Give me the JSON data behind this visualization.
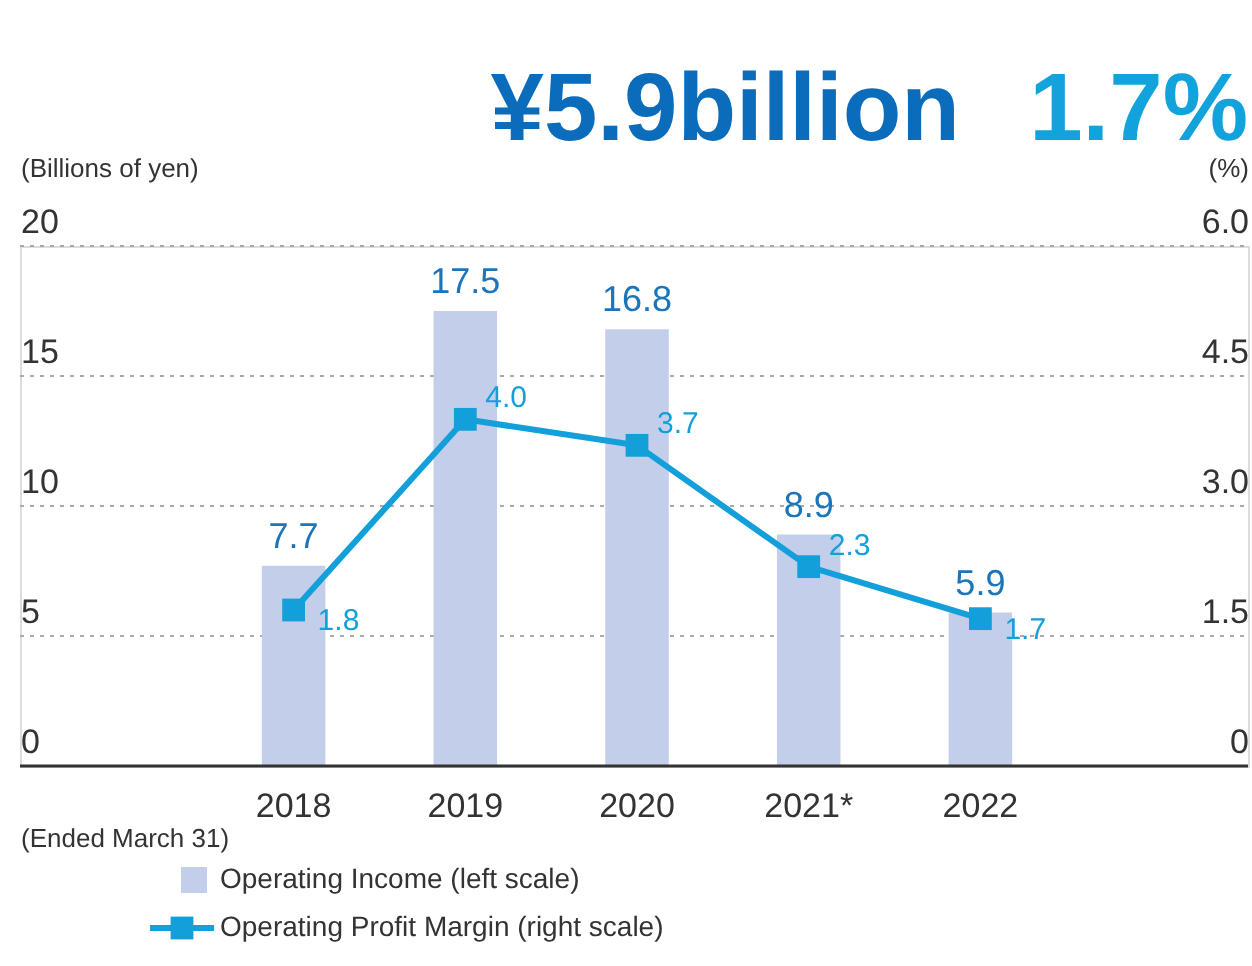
{
  "chart_data": {
    "type": "bar",
    "categories": [
      "2018",
      "2019",
      "2020",
      "2021*",
      "2022"
    ],
    "series": [
      {
        "name": "Operating Income (left scale)",
        "color": "#c3cfea",
        "values": [
          7.7,
          17.5,
          16.8,
          8.9,
          5.9
        ]
      },
      {
        "name": "Operating Profit Margin (right scale)",
        "type": "line",
        "axis": "y2",
        "color": "#139fd9",
        "marker": "square",
        "values": [
          1.8,
          4.0,
          3.7,
          2.3,
          1.7
        ],
        "value_labels": [
          "1.8",
          "4.0",
          "3.7",
          "2.3",
          "1.7"
        ]
      }
    ],
    "xlabel": "(Ended March 31)",
    "ylabel": "(Billions of yen)",
    "y2label": "(%)",
    "ylim": [
      0,
      20
    ],
    "yticks": [
      0,
      5,
      10,
      15,
      20
    ],
    "y2lim": [
      0,
      6
    ],
    "y2ticks": [
      0,
      1.5,
      {
        "value": 3,
        "label": "3.0"
      },
      4.5,
      {
        "value": 6,
        "label": "6.0"
      }
    ],
    "annotations": [
      "¥5.9billion",
      "1.7%"
    ],
    "data_labels": true,
    "grid": "y",
    "legend": "bottom"
  }
}
